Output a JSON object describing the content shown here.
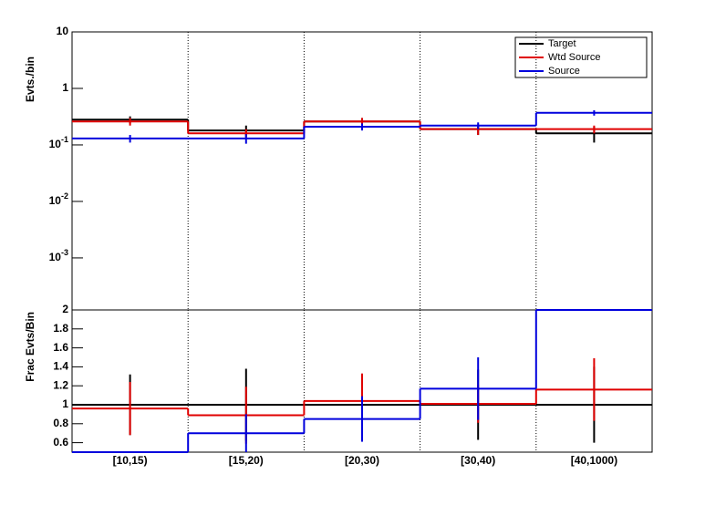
{
  "chart_data": [
    {
      "type": "step",
      "yscale": "log",
      "ylabel": "Evts./bin",
      "ylim": [
        0.00012,
        10
      ],
      "yticks": [
        {
          "value": 0.001,
          "label": "10-3"
        },
        {
          "value": 0.01,
          "label": "10-2"
        },
        {
          "value": 0.1,
          "label": "10-1"
        },
        1,
        10
      ],
      "grid": true,
      "legend": "top-right",
      "series": [
        {
          "name": "Target",
          "color": "#000000",
          "values": [
            0.28,
            0.18,
            0.26,
            0.19,
            0.16
          ],
          "errors": [
            0.04,
            0.04,
            0.04,
            0.04,
            0.05
          ]
        },
        {
          "name": "Wtd Source",
          "color": "#e00000",
          "values": [
            0.26,
            0.16,
            0.26,
            0.19,
            0.19
          ],
          "errors": [
            0.04,
            0.03,
            0.04,
            0.04,
            0.03
          ]
        },
        {
          "name": "Source",
          "color": "#0000dd",
          "values": [
            0.13,
            0.13,
            0.21,
            0.22,
            0.37
          ],
          "errors": [
            0.02,
            0.025,
            0.03,
            0.03,
            0.04
          ]
        }
      ]
    },
    {
      "type": "step",
      "ylabel": "Frac Evts/Bin",
      "categories": [
        "[10,15)",
        "[15,20)",
        "[20,30)",
        "[30,40)",
        "[40,1000)"
      ],
      "ylim": [
        0.5,
        2
      ],
      "yticks": [
        0.6,
        0.8,
        1,
        1.2,
        1.4,
        1.6,
        1.8,
        2
      ],
      "grid": true,
      "series": [
        {
          "color": "#000000",
          "values": [
            1,
            1,
            1,
            1,
            1
          ],
          "errors": [
            0.32,
            0.38,
            0.3,
            0.37,
            0.4
          ]
        },
        {
          "color": "#e00000",
          "values": [
            0.96,
            0.89,
            1.04,
            1.01,
            1.16
          ],
          "errors": [
            0.28,
            0.3,
            0.29,
            0.2,
            0.33
          ]
        },
        {
          "color": "#0000dd",
          "values": [
            0.5,
            0.7,
            0.85,
            1.17,
            2
          ],
          "errors": [
            0,
            0.2,
            0.24,
            0.33,
            0
          ]
        }
      ]
    }
  ]
}
